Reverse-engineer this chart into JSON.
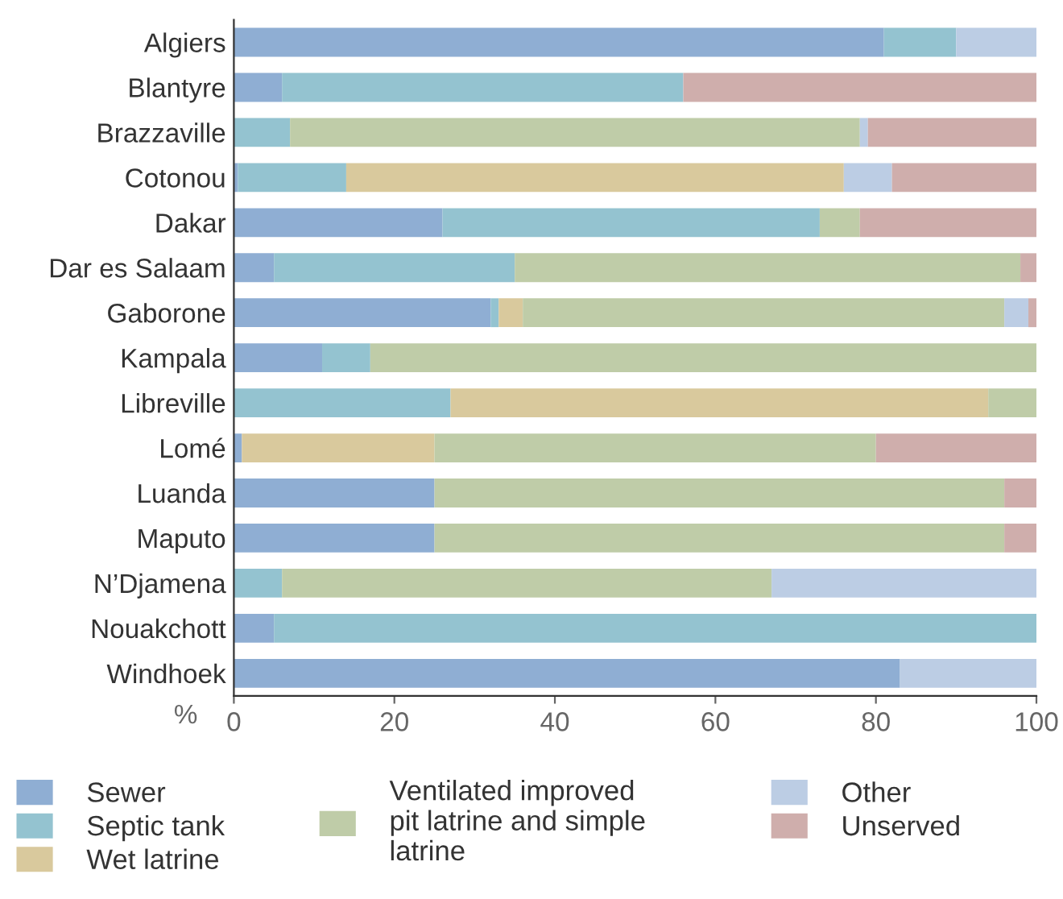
{
  "chart_data": {
    "type": "bar",
    "orientation": "horizontal",
    "stacked": true,
    "xlabel": "%",
    "categories": [
      "Algiers",
      "Blantyre",
      "Brazzaville",
      "Cotonou",
      "Dakar",
      "Dar es Salaam",
      "Gaborone",
      "Kampala",
      "Libreville",
      "Lomé",
      "Luanda",
      "Maputo",
      "N’Djamena",
      "Nouakchott",
      "Windhoek"
    ],
    "series": [
      {
        "name": "Sewer",
        "color": "#8faed3",
        "values": [
          81,
          6,
          0,
          0.5,
          26,
          5,
          32,
          11,
          0,
          1,
          25,
          25,
          0,
          5,
          83
        ]
      },
      {
        "name": "Septic tank",
        "color": "#94c3d0",
        "values": [
          9,
          50,
          7,
          13.5,
          47,
          30,
          1,
          6,
          27,
          0,
          0,
          0,
          6,
          95,
          0
        ]
      },
      {
        "name": "Wet latrine",
        "color": "#d9c99d",
        "values": [
          0,
          0,
          0,
          62,
          0,
          0,
          3,
          0,
          67,
          24,
          0,
          0,
          0,
          0,
          0
        ]
      },
      {
        "name": "Ventilated improved\npit latrine and simple\nlatrine",
        "color": "#bfcca8",
        "values": [
          0,
          0,
          71,
          0,
          5,
          63,
          60,
          83,
          6,
          55,
          71,
          71,
          61,
          0,
          0
        ]
      },
      {
        "name": "Other",
        "color": "#bccde4",
        "values": [
          10,
          0,
          1,
          6,
          0,
          0,
          3,
          0,
          0,
          0,
          0,
          0,
          33,
          0,
          17
        ]
      },
      {
        "name": "Unserved",
        "color": "#cfaeac",
        "values": [
          0,
          44,
          21,
          18,
          22,
          2,
          1,
          0,
          0,
          20,
          4,
          4,
          0,
          0,
          0
        ]
      }
    ],
    "xlim": [
      0,
      100
    ],
    "xticks": [
      0,
      20,
      40,
      60,
      80,
      100
    ],
    "grid": false,
    "legend": "bottom"
  }
}
